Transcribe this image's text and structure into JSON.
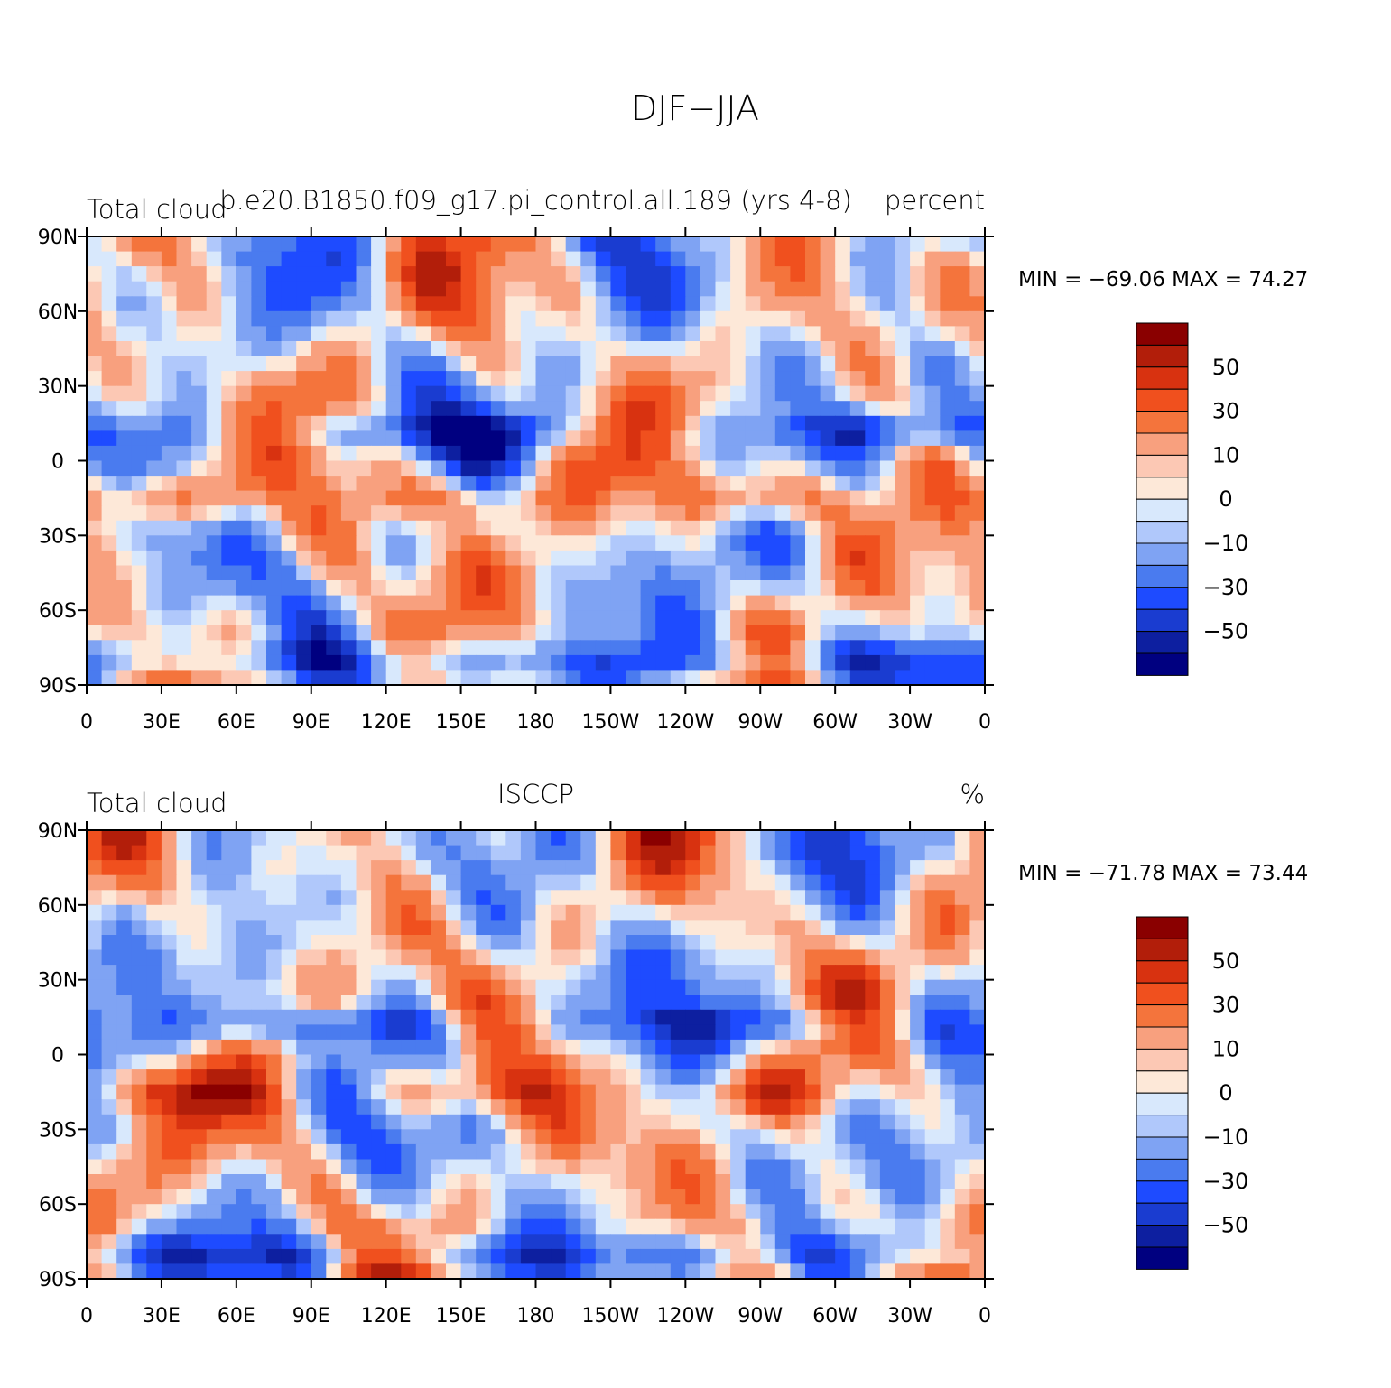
{
  "figure_title": "DJF−JJA",
  "levels_colors": [
    "#000080",
    "#0d1fa0",
    "#1a3cd0",
    "#1e4bff",
    "#4a7bef",
    "#7fa3f3",
    "#b0c8fb",
    "#d8e8fc",
    "#fde8d8",
    "#fcc8b4",
    "#f8a07e",
    "#f4743c",
    "#f0501e",
    "#d83210",
    "#b21e0a",
    "#8a0000"
  ],
  "colorbar_labels": [
    "50",
    "30",
    "10",
    "0",
    "−10",
    "−30",
    "−50"
  ],
  "panels": [
    {
      "left_string": "Total cloud",
      "center_string": "b.e20.B1850.f09_g17.pi_control.all.189 (yrs 4-8)",
      "right_string": "percent",
      "min_max": "MIN = −69.06 MAX =   74.27",
      "seed": 3
    },
    {
      "left_string": "Total cloud",
      "center_string": "ISCCP",
      "right_string": "%",
      "min_max": "MIN = −71.78 MAX =   73.44",
      "seed": 11
    }
  ],
  "axes": {
    "lat_labels": [
      "90N",
      "60N",
      "30N",
      "0",
      "30S",
      "60S",
      "90S"
    ],
    "lon_labels": [
      "0",
      "30E",
      "60E",
      "90E",
      "120E",
      "150E",
      "180",
      "150W",
      "120W",
      "90W",
      "60W",
      "30W",
      "0"
    ]
  },
  "chart_data": {
    "type": "heatmap",
    "title": "DJF−JJA",
    "field": "Total cloud",
    "units": [
      "percent",
      "%"
    ],
    "contour_levels": [
      -60,
      -50,
      -40,
      -30,
      -20,
      -10,
      -5,
      0,
      5,
      10,
      20,
      30,
      40,
      50,
      60
    ],
    "lat_range": [
      -90,
      90
    ],
    "lon_range": [
      0,
      360
    ],
    "panels": [
      {
        "name": "b.e20.B1850.f09_g17.pi_control.all.189 (yrs 4-8)",
        "min": -69.06,
        "max": 74.27
      },
      {
        "name": "ISCCP",
        "min": -71.78,
        "max": 73.44
      }
    ]
  }
}
